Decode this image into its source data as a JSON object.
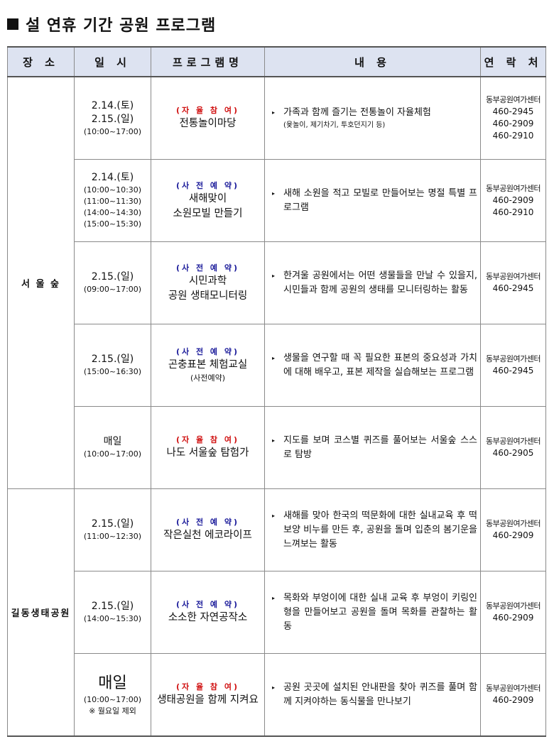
{
  "title": "설 연휴 기간 공원 프로그램",
  "headers": [
    "장  소",
    "일  시",
    "프로그램명",
    "내     용",
    "연 락 처"
  ],
  "colors": {
    "header_bg": "#dde3f1",
    "self_tag": "#d01010",
    "reserve_tag": "#1a1a9a"
  },
  "groups": [
    {
      "place": "서 울 숲",
      "rows": [
        {
          "dates": [
            "2.14.(토)",
            "2.15.(일)"
          ],
          "times": [
            "(10:00~17:00)"
          ],
          "tag": "(자 율 참 여)",
          "tag_type": "self",
          "name": [
            "전통놀이마당"
          ],
          "name_sub": "",
          "desc": "가족과 함께 즐기는 전통놀이 자율체험",
          "desc_sub": "(윷놀이, 제기차기, 투호던지기 등)",
          "contact_org": "동부공원여가센터",
          "phones": [
            "460-2945",
            "460-2909",
            "460-2910"
          ]
        },
        {
          "dates": [
            "2.14.(토)"
          ],
          "times": [
            "(10:00~10:30)",
            "(11:00~11:30)",
            "(14:00~14:30)",
            "(15:00~15:30)"
          ],
          "tag": "(사 전 예 약)",
          "tag_type": "reserve",
          "name": [
            "새해맞이",
            "소원모빌 만들기"
          ],
          "name_sub": "",
          "desc": "새해 소원을 적고 모빌로 만들어보는 명절 특별 프로그램",
          "desc_sub": "",
          "contact_org": "동부공원여가센터",
          "phones": [
            "460-2909",
            "460-2910"
          ]
        },
        {
          "dates": [
            "2.15.(일)"
          ],
          "times": [
            "(09:00~17:00)"
          ],
          "tag": "(사 전 예 약)",
          "tag_type": "reserve",
          "name": [
            "시민과학",
            "공원 생태모니터링"
          ],
          "name_sub": "",
          "desc": "한겨울 공원에서는 어떤 생물들을 만날 수 있을지, 시민들과 함께 공원의 생태를 모니터링하는 활동",
          "desc_sub": "",
          "contact_org": "동부공원여가센터",
          "phones": [
            "460-2945"
          ]
        },
        {
          "dates": [
            "2.15.(일)"
          ],
          "times": [
            "(15:00~16:30)"
          ],
          "tag": "(사 전 예 약)",
          "tag_type": "reserve",
          "name": [
            "곤충표본 체험교실"
          ],
          "name_sub": "(사전예약)",
          "desc": "생물을 연구할 때 꼭 필요한 표본의 중요성과 가치에 대해 배우고, 표본 제작을 실습해보는 프로그램",
          "desc_sub": "",
          "contact_org": "동부공원여가센터",
          "phones": [
            "460-2945"
          ]
        },
        {
          "dates": [
            "매일"
          ],
          "times": [
            "(10:00~17:00)"
          ],
          "tag": "(자 율 참 여)",
          "tag_type": "self",
          "name": [
            "나도 서울숲 탐험가"
          ],
          "name_sub": "",
          "desc": "지도를 보며 코스별 퀴즈를 풀어보는 서울숲 스스로 탐방",
          "desc_sub": "",
          "contact_org": "동부공원여가센터",
          "phones": [
            "460-2905"
          ]
        }
      ]
    },
    {
      "place": "길동생태공원",
      "rows": [
        {
          "dates": [
            "2.15.(일)"
          ],
          "times": [
            "(11:00~12:30)"
          ],
          "tag": "(사 전 예 약)",
          "tag_type": "reserve",
          "name": [
            "작은실천 에코라이프"
          ],
          "name_sub": "",
          "desc": "새해를 맞아 한국의 떡문화에 대한 실내교육 후 떡보양 비누를 만든 후, 공원을 돌며 입춘의 봄기운을 느껴보는 활동",
          "desc_sub": "",
          "contact_org": "동부공원여가센터",
          "phones": [
            "460-2909"
          ]
        },
        {
          "dates": [
            "2.15.(일)"
          ],
          "times": [
            "(14:00~15:30)"
          ],
          "tag": "(사 전 예 약)",
          "tag_type": "reserve",
          "name": [
            "소소한 자연공작소"
          ],
          "name_sub": "",
          "desc": "목화와 부엉이에 대한 실내 교육 후 부엉이 키링인형을 만들어보고 공원을 돌며 목화를 관찰하는 활동",
          "desc_sub": "",
          "contact_org": "동부공원여가센터",
          "phones": [
            "460-2909"
          ]
        },
        {
          "dates": [
            "매일"
          ],
          "dates_big": true,
          "times": [
            "(10:00~17:00)",
            "※ 월요일 제외"
          ],
          "tag": "(자 율 참 여)",
          "tag_type": "self",
          "name": [
            "생태공원을 함께 지켜요"
          ],
          "name_sub": "",
          "desc": "공원 곳곳에 설치된 안내판을 찾아 퀴즈를 풀며 함께 지켜야하는 동식물을 만나보기",
          "desc_sub": "",
          "contact_org": "동부공원여가센터",
          "phones": [
            "460-2909"
          ]
        }
      ]
    }
  ]
}
